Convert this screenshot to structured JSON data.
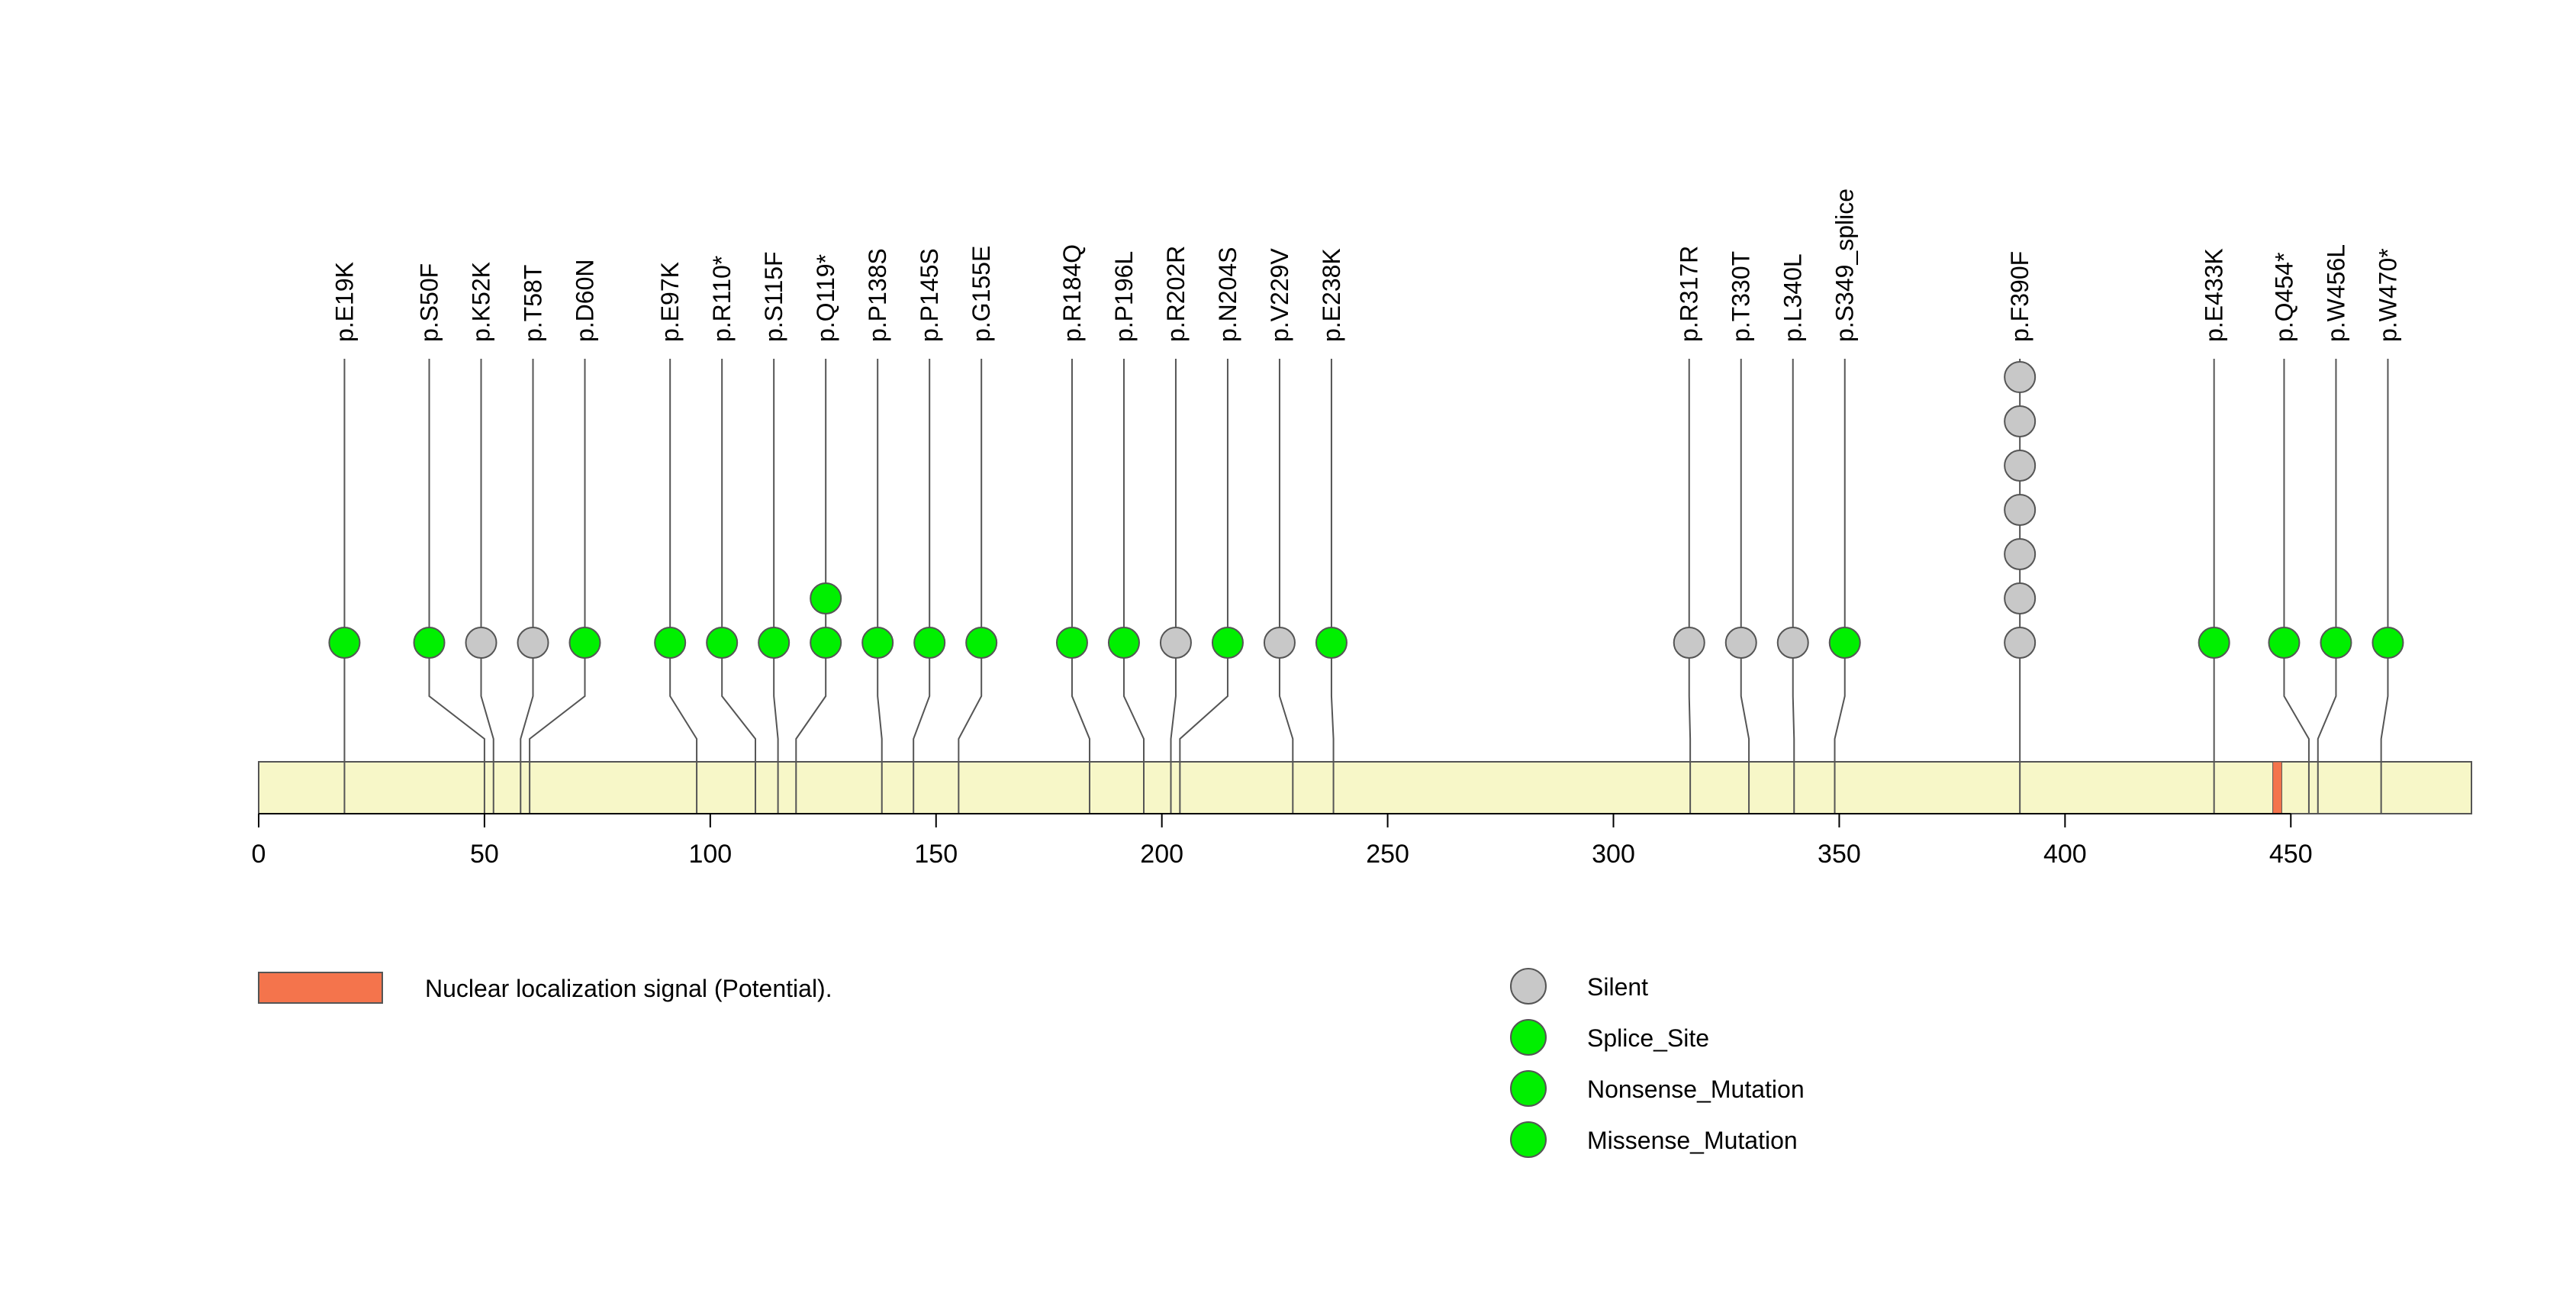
{
  "chart_data": {
    "type": "lollipop",
    "protein_length": 490,
    "x_axis": {
      "ticks": [
        0,
        50,
        100,
        150,
        200,
        250,
        300,
        350,
        400,
        450
      ],
      "range": [
        0,
        490
      ]
    },
    "domains": [
      {
        "start": 446,
        "end": 448,
        "label": "Nuclear localization signal (Potential).",
        "color": "#F4744C"
      }
    ],
    "protein_bar_color": "#F7F7C8",
    "legend": [
      {
        "label": "Silent",
        "color": "#C8C8C8"
      },
      {
        "label": "Splice_Site",
        "color": "#00F000"
      },
      {
        "label": "Nonsense_Mutation",
        "color": "#00F000"
      },
      {
        "label": "Missense_Mutation",
        "color": "#00F000"
      }
    ],
    "mutations": [
      {
        "label": "p.E19K",
        "position": 19,
        "count": 1,
        "type": "Missense_Mutation"
      },
      {
        "label": "p.S50F",
        "position": 50,
        "count": 1,
        "type": "Missense_Mutation"
      },
      {
        "label": "p.K52K",
        "position": 52,
        "count": 1,
        "type": "Silent"
      },
      {
        "label": "p.T58T",
        "position": 58,
        "count": 1,
        "type": "Silent"
      },
      {
        "label": "p.D60N",
        "position": 60,
        "count": 1,
        "type": "Missense_Mutation"
      },
      {
        "label": "p.E97K",
        "position": 97,
        "count": 1,
        "type": "Missense_Mutation"
      },
      {
        "label": "p.R110*",
        "position": 110,
        "count": 1,
        "type": "Nonsense_Mutation"
      },
      {
        "label": "p.S115F",
        "position": 115,
        "count": 1,
        "type": "Missense_Mutation"
      },
      {
        "label": "p.Q119*",
        "position": 119,
        "count": 2,
        "type": "Nonsense_Mutation"
      },
      {
        "label": "p.P138S",
        "position": 138,
        "count": 1,
        "type": "Missense_Mutation"
      },
      {
        "label": "p.P145S",
        "position": 145,
        "count": 1,
        "type": "Missense_Mutation"
      },
      {
        "label": "p.G155E",
        "position": 155,
        "count": 1,
        "type": "Missense_Mutation"
      },
      {
        "label": "p.R184Q",
        "position": 184,
        "count": 1,
        "type": "Missense_Mutation"
      },
      {
        "label": "p.P196L",
        "position": 196,
        "count": 1,
        "type": "Missense_Mutation"
      },
      {
        "label": "p.R202R",
        "position": 202,
        "count": 1,
        "type": "Silent"
      },
      {
        "label": "p.N204S",
        "position": 204,
        "count": 1,
        "type": "Missense_Mutation"
      },
      {
        "label": "p.V229V",
        "position": 229,
        "count": 1,
        "type": "Silent"
      },
      {
        "label": "p.E238K",
        "position": 238,
        "count": 1,
        "type": "Missense_Mutation"
      },
      {
        "label": "p.R317R",
        "position": 317,
        "count": 1,
        "type": "Silent"
      },
      {
        "label": "p.T330T",
        "position": 330,
        "count": 1,
        "type": "Silent"
      },
      {
        "label": "p.L340L",
        "position": 340,
        "count": 1,
        "type": "Silent"
      },
      {
        "label": "p.S349_splice",
        "position": 349,
        "count": 1,
        "type": "Splice_Site"
      },
      {
        "label": "p.F390F",
        "position": 390,
        "count": 7,
        "type": "Silent"
      },
      {
        "label": "p.E433K",
        "position": 433,
        "count": 1,
        "type": "Missense_Mutation"
      },
      {
        "label": "p.Q454*",
        "position": 454,
        "count": 1,
        "type": "Nonsense_Mutation"
      },
      {
        "label": "p.W456L",
        "position": 456,
        "count": 1,
        "type": "Missense_Mutation"
      },
      {
        "label": "p.W470*",
        "position": 470,
        "count": 1,
        "type": "Nonsense_Mutation"
      }
    ]
  }
}
